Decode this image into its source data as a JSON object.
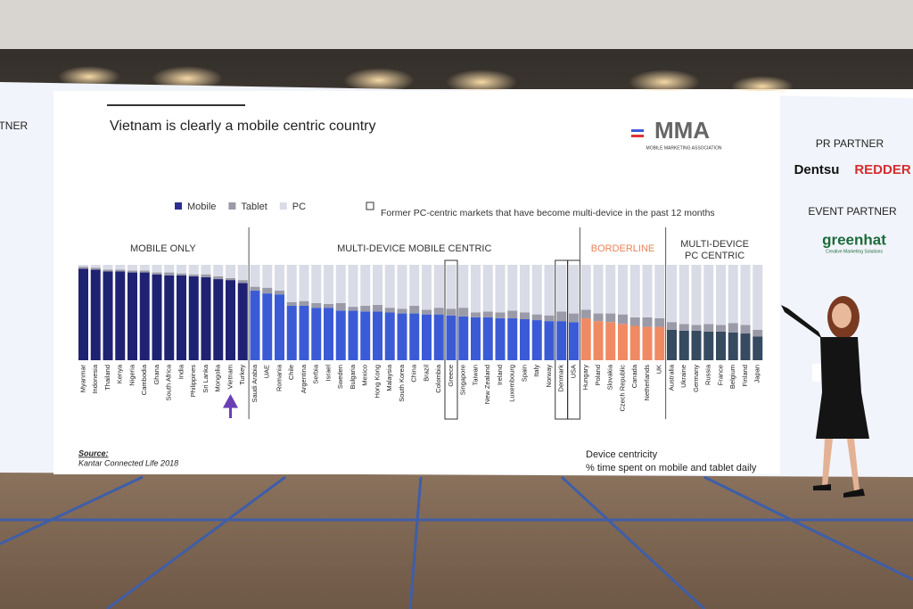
{
  "chart_data": {
    "type": "stacked-bar",
    "title": "Vietnam is clearly a mobile centric country",
    "series": [
      {
        "name": "Mobile",
        "color": "#2b2f8f"
      },
      {
        "name": "Tablet",
        "color": "#9a9aa8"
      },
      {
        "name": "PC",
        "color": "#d9dbe6"
      }
    ],
    "box_note": "Former PC-centric markets that have become multi-device in the past 12 months",
    "groups": [
      {
        "label": [
          "MOBILE ONLY"
        ],
        "label_color": "#333333",
        "mobile_color": "#1f2272",
        "categories": [
          "Myanmar",
          "Indonesia",
          "Thailand",
          "Kenya",
          "Nigeria",
          "Cambodia",
          "Ghana",
          "South Africa",
          "India",
          "Philippines",
          "Sri Lanka",
          "Mongolia",
          "Vietnam",
          "Turkey"
        ],
        "mobile": [
          96,
          95,
          93,
          93,
          92,
          92,
          90,
          89,
          89,
          88,
          87,
          85,
          84,
          81
        ],
        "tablet": [
          2,
          2,
          2,
          2,
          2,
          2,
          2,
          3,
          2,
          2,
          3,
          3,
          2,
          3
        ],
        "pc": [
          2,
          3,
          5,
          5,
          6,
          6,
          8,
          8,
          9,
          10,
          10,
          12,
          14,
          16
        ],
        "arrow": [
          12
        ],
        "boxed": []
      },
      {
        "label": [
          "MULTI-DEVICE MOBILE CENTRIC"
        ],
        "label_color": "#333333",
        "mobile_color": "#3b5bd6",
        "categories": [
          "Saudi Arabia",
          "UAE",
          "Romania",
          "Chile",
          "Argentina",
          "Serbia",
          "Israel",
          "Sweden",
          "Bulgaria",
          "Mexico",
          "Hong Kong",
          "Malaysia",
          "South Korea",
          "China",
          "Brazil",
          "Colombia",
          "Greece",
          "Singapore",
          "Taiwan",
          "New Zealand",
          "Ireland",
          "Luxembourg",
          "Spain",
          "Italy",
          "Norway",
          "Denmark",
          "USA"
        ],
        "mobile": [
          73,
          70,
          69,
          57,
          57,
          55,
          55,
          52,
          52,
          51,
          51,
          50,
          49,
          49,
          48,
          48,
          47,
          46,
          45,
          45,
          44,
          44,
          43,
          42,
          41,
          41,
          40
        ],
        "tablet": [
          4,
          6,
          4,
          4,
          5,
          5,
          4,
          8,
          4,
          6,
          7,
          5,
          5,
          8,
          5,
          7,
          7,
          9,
          5,
          6,
          6,
          8,
          7,
          6,
          6,
          10,
          9
        ],
        "pc": [
          23,
          24,
          27,
          39,
          38,
          40,
          41,
          40,
          44,
          43,
          42,
          45,
          46,
          43,
          47,
          45,
          46,
          45,
          50,
          49,
          50,
          48,
          50,
          52,
          53,
          49,
          51
        ],
        "arrow": [],
        "boxed": [
          16,
          25,
          26
        ]
      },
      {
        "label": [
          "BORDERLINE"
        ],
        "label_color": "#e8835a",
        "mobile_color": "#f08a63",
        "categories": [
          "Hungary",
          "Poland",
          "Slovakia",
          "Czech Republic",
          "Canada",
          "Netherlands",
          "UK"
        ],
        "mobile": [
          44,
          41,
          40,
          38,
          36,
          35,
          35
        ],
        "tablet": [
          9,
          8,
          9,
          10,
          9,
          10,
          9
        ],
        "pc": [
          47,
          51,
          51,
          52,
          55,
          55,
          56
        ],
        "arrow": [],
        "boxed": []
      },
      {
        "label": [
          "MULTI-DEVICE",
          "PC CENTRIC"
        ],
        "label_color": "#333333",
        "mobile_color": "#364a60",
        "categories": [
          "Australia",
          "Ukraine",
          "Germany",
          "Russia",
          "France",
          "Belgium",
          "Finland",
          "Japan"
        ],
        "mobile": [
          32,
          31,
          31,
          30,
          30,
          29,
          28,
          25
        ],
        "tablet": [
          8,
          7,
          6,
          8,
          7,
          10,
          9,
          7
        ],
        "pc": [
          60,
          62,
          63,
          62,
          63,
          61,
          63,
          68
        ],
        "arrow": [],
        "boxed": []
      }
    ],
    "source_label": "Source:",
    "source": "Kantar Connected Life 2018",
    "footnote": [
      "Device centricity",
      "% time spent on mobile and tablet daily"
    ]
  },
  "logo": {
    "name": "MMA",
    "tagline": "MOBILE MARKETING ASSOCIATION"
  },
  "left_panel": [
    "RTNER"
  ],
  "right_panel": {
    "pr_heading": "PR PARTNER",
    "pr_partners": [
      "Dentsu",
      "REDDER"
    ],
    "event_heading": "EVENT PARTNER",
    "event_partner": "greenhat",
    "event_tagline": "Creative Marketing Solutions"
  }
}
